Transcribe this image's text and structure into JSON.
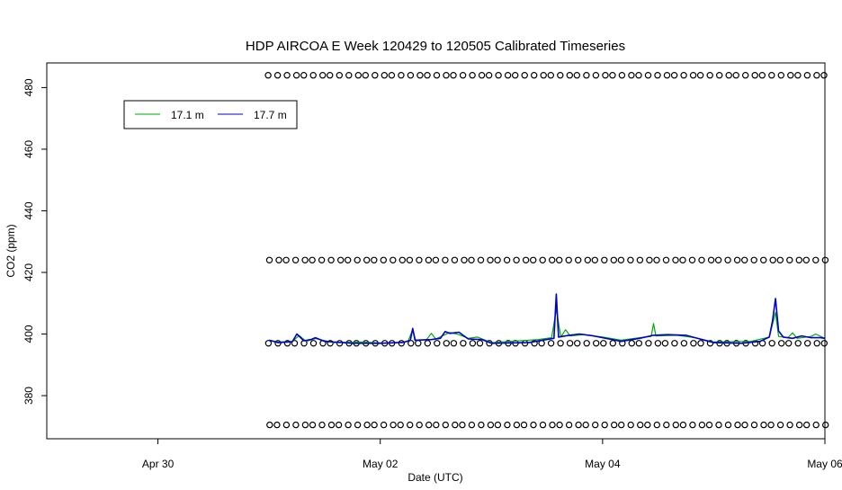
{
  "chart_data": {
    "type": "line",
    "title": "HDP AIRCOA E  Week 120429 to 120505  Calibrated Timeseries",
    "xlabel": "Date (UTC)",
    "ylabel": "CO2 (ppm)",
    "xlim": [
      "2012-04-29T00:00",
      "2012-05-06T00:00"
    ],
    "ylim": [
      366,
      488
    ],
    "grid": false,
    "legend_position": "top-left",
    "x_ticks": [
      {
        "label": "Apr 30",
        "x": "2012-04-30T00:00"
      },
      {
        "label": "May 02",
        "x": "2012-05-02T00:00"
      },
      {
        "label": "May 04",
        "x": "2012-05-04T00:00"
      },
      {
        "label": "May 06",
        "x": "2012-05-06T00:00"
      }
    ],
    "y_ticks": [
      380,
      400,
      420,
      440,
      460,
      480
    ],
    "series": [
      {
        "name": "17.1 m",
        "color": "#00aa00",
        "style": "line",
        "points": [
          [
            "2012-05-01T00:00",
            398.0
          ],
          [
            "2012-05-01T02:00",
            397.4
          ],
          [
            "2012-05-01T05:00",
            397.6
          ],
          [
            "2012-05-01T06:30",
            399.5
          ],
          [
            "2012-05-01T08:00",
            397.6
          ],
          [
            "2012-05-01T10:00",
            398.5
          ],
          [
            "2012-05-01T14:00",
            397.2
          ],
          [
            "2012-05-01T20:00",
            397.4
          ],
          [
            "2012-05-02T02:00",
            397.0
          ],
          [
            "2012-05-02T06:00",
            397.6
          ],
          [
            "2012-05-02T07:00",
            401.5
          ],
          [
            "2012-05-02T07:40",
            397.8
          ],
          [
            "2012-05-02T10:00",
            398.2
          ],
          [
            "2012-05-02T11:00",
            400.2
          ],
          [
            "2012-05-02T12:00",
            398.4
          ],
          [
            "2012-05-02T15:00",
            400.5
          ],
          [
            "2012-05-02T17:00",
            399.8
          ],
          [
            "2012-05-02T19:00",
            398.6
          ],
          [
            "2012-05-02T21:00",
            399.0
          ],
          [
            "2012-05-03T00:00",
            397.2
          ],
          [
            "2012-05-03T10:00",
            398.2
          ],
          [
            "2012-05-03T13:00",
            398.8
          ],
          [
            "2012-05-03T14:00",
            408.0
          ],
          [
            "2012-05-03T15:00",
            399.0
          ],
          [
            "2012-05-03T16:00",
            401.4
          ],
          [
            "2012-05-03T17:00",
            399.4
          ],
          [
            "2012-05-03T20:00",
            399.8
          ],
          [
            "2012-05-04T00:00",
            399.0
          ],
          [
            "2012-05-04T04:00",
            398.0
          ],
          [
            "2012-05-04T08:00",
            398.8
          ],
          [
            "2012-05-04T10:30",
            399.2
          ],
          [
            "2012-05-04T11:00",
            403.4
          ],
          [
            "2012-05-04T11:30",
            399.4
          ],
          [
            "2012-05-04T16:00",
            399.6
          ],
          [
            "2012-05-04T20:00",
            398.8
          ],
          [
            "2012-05-05T00:00",
            397.4
          ],
          [
            "2012-05-05T08:00",
            397.6
          ],
          [
            "2012-05-05T12:00",
            399.0
          ],
          [
            "2012-05-05T13:20",
            407.0
          ],
          [
            "2012-05-05T14:00",
            399.2
          ],
          [
            "2012-05-05T16:00",
            398.8
          ],
          [
            "2012-05-05T17:00",
            400.4
          ],
          [
            "2012-05-05T18:00",
            398.6
          ],
          [
            "2012-05-05T21:00",
            399.2
          ],
          [
            "2012-05-05T22:00",
            400.0
          ],
          [
            "2012-05-06T00:00",
            398.6
          ]
        ]
      },
      {
        "name": "17.7 m",
        "color": "#0000cc",
        "style": "line",
        "points": [
          [
            "2012-05-01T00:00",
            398.0
          ],
          [
            "2012-05-01T02:00",
            397.2
          ],
          [
            "2012-05-01T05:00",
            397.5
          ],
          [
            "2012-05-01T06:00",
            400.0
          ],
          [
            "2012-05-01T07:30",
            397.8
          ],
          [
            "2012-05-01T09:00",
            398.2
          ],
          [
            "2012-05-01T10:00",
            398.8
          ],
          [
            "2012-05-01T12:00",
            397.6
          ],
          [
            "2012-05-01T18:00",
            397.0
          ],
          [
            "2012-05-02T00:00",
            397.0
          ],
          [
            "2012-05-02T05:00",
            397.3
          ],
          [
            "2012-05-02T06:30",
            398.0
          ],
          [
            "2012-05-02T07:00",
            401.8
          ],
          [
            "2012-05-02T07:30",
            398.0
          ],
          [
            "2012-05-02T11:00",
            398.2
          ],
          [
            "2012-05-02T13:00",
            398.6
          ],
          [
            "2012-05-02T14:00",
            400.8
          ],
          [
            "2012-05-02T15:00",
            400.2
          ],
          [
            "2012-05-02T17:00",
            400.6
          ],
          [
            "2012-05-02T19:00",
            398.4
          ],
          [
            "2012-05-02T22:00",
            398.2
          ],
          [
            "2012-05-03T00:00",
            397.0
          ],
          [
            "2012-05-03T08:00",
            397.2
          ],
          [
            "2012-05-03T11:00",
            398.0
          ],
          [
            "2012-05-03T13:30",
            398.6
          ],
          [
            "2012-05-03T14:00",
            413.0
          ],
          [
            "2012-05-03T14:30",
            399.0
          ],
          [
            "2012-05-03T16:00",
            399.4
          ],
          [
            "2012-05-03T19:00",
            400.0
          ],
          [
            "2012-05-03T22:00",
            399.4
          ],
          [
            "2012-05-04T00:00",
            398.8
          ],
          [
            "2012-05-04T04:00",
            397.6
          ],
          [
            "2012-05-04T08:00",
            398.6
          ],
          [
            "2012-05-04T11:00",
            399.6
          ],
          [
            "2012-05-04T14:00",
            399.8
          ],
          [
            "2012-05-04T18:00",
            399.6
          ],
          [
            "2012-05-04T21:00",
            398.4
          ],
          [
            "2012-05-05T00:00",
            397.2
          ],
          [
            "2012-05-05T06:00",
            397.0
          ],
          [
            "2012-05-05T10:00",
            397.6
          ],
          [
            "2012-05-05T12:00",
            399.0
          ],
          [
            "2012-05-05T12:40",
            404.0
          ],
          [
            "2012-05-05T13:20",
            411.5
          ],
          [
            "2012-05-05T14:00",
            401.0
          ],
          [
            "2012-05-05T15:00",
            399.0
          ],
          [
            "2012-05-05T17:00",
            398.6
          ],
          [
            "2012-05-05T19:00",
            399.4
          ],
          [
            "2012-05-05T21:00",
            398.8
          ],
          [
            "2012-05-05T23:00",
            398.8
          ],
          [
            "2012-05-06T00:00",
            398.6
          ]
        ]
      },
      {
        "style": "points",
        "color": "#000000",
        "x_range": [
          "2012-05-01T00:00",
          "2012-05-06T00:00"
        ],
        "levels_ppm": [
          484,
          424,
          397,
          370.5
        ],
        "count_per_level": 64
      }
    ]
  }
}
